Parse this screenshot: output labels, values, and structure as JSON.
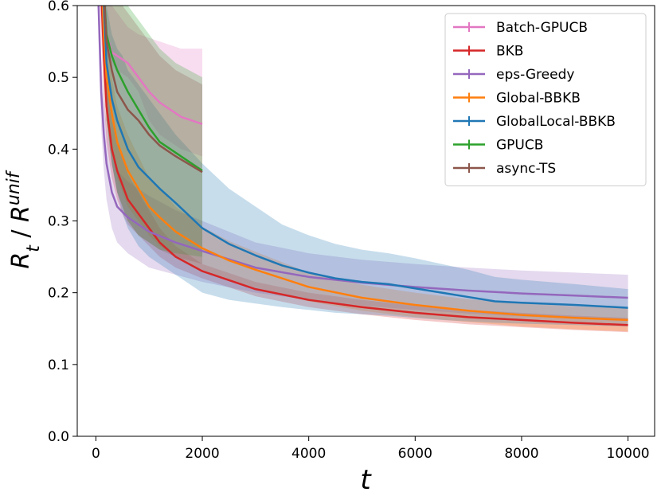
{
  "chart_data": {
    "type": "line",
    "title": "",
    "xlabel": "t",
    "ylabel_main": "R",
    "ylabel_main_sub": "t",
    "ylabel_sep": " / ",
    "ylabel_denom": "R",
    "ylabel_denom_sub": "t",
    "ylabel_denom_sup": "unif",
    "xlim": [
      -350,
      10500
    ],
    "ylim": [
      0.0,
      0.6
    ],
    "xticks": [
      0,
      2000,
      4000,
      6000,
      8000,
      10000
    ],
    "xtick_labels": [
      "0",
      "2000",
      "4000",
      "6000",
      "8000",
      "10000"
    ],
    "yticks": [
      0.0,
      0.1,
      0.2,
      0.3,
      0.4,
      0.5,
      0.6
    ],
    "ytick_labels": [
      "0.0",
      "0.1",
      "0.2",
      "0.3",
      "0.4",
      "0.5",
      "0.6"
    ],
    "grid": false,
    "legend_position": "top-right",
    "series": [
      {
        "name": "Batch-GPUCB",
        "color": "#e377c2",
        "x": [
          100,
          200,
          300,
          400,
          600,
          800,
          1000,
          1200,
          1400,
          1600,
          1800,
          2000
        ],
        "y": [
          0.66,
          0.56,
          0.535,
          0.53,
          0.52,
          0.5,
          0.48,
          0.465,
          0.455,
          0.445,
          0.44,
          0.435
        ],
        "lower": [
          0.6,
          0.54,
          0.52,
          0.51,
          0.5,
          0.48,
          0.44,
          0.42,
          0.41,
          0.4,
          0.395,
          0.39
        ],
        "upper": [
          0.7,
          0.62,
          0.6,
          0.59,
          0.57,
          0.56,
          0.555,
          0.55,
          0.545,
          0.54,
          0.54,
          0.54
        ]
      },
      {
        "name": "BKB",
        "color": "#d62728",
        "x": [
          50,
          100,
          150,
          200,
          300,
          400,
          500,
          600,
          800,
          1000,
          1200,
          1500,
          2000,
          3000,
          4000,
          5000,
          6000,
          7000,
          8000,
          9000,
          10000
        ],
        "y": [
          0.7,
          0.62,
          0.53,
          0.46,
          0.4,
          0.37,
          0.35,
          0.33,
          0.31,
          0.29,
          0.27,
          0.25,
          0.23,
          0.205,
          0.19,
          0.18,
          0.172,
          0.166,
          0.162,
          0.158,
          0.155
        ],
        "lower": [
          0.65,
          0.56,
          0.47,
          0.41,
          0.36,
          0.33,
          0.31,
          0.295,
          0.28,
          0.265,
          0.25,
          0.235,
          0.22,
          0.195,
          0.18,
          0.17,
          0.162,
          0.156,
          0.152,
          0.148,
          0.145
        ],
        "upper": [
          0.75,
          0.68,
          0.59,
          0.51,
          0.44,
          0.41,
          0.39,
          0.365,
          0.34,
          0.315,
          0.29,
          0.265,
          0.24,
          0.215,
          0.2,
          0.19,
          0.182,
          0.176,
          0.172,
          0.168,
          0.165
        ]
      },
      {
        "name": "eps-Greedy",
        "color": "#9467bd",
        "x": [
          50,
          100,
          150,
          200,
          300,
          400,
          600,
          800,
          1000,
          1500,
          2000,
          3000,
          4000,
          5000,
          6000,
          7000,
          8000,
          9000,
          10000
        ],
        "y": [
          0.6,
          0.48,
          0.42,
          0.38,
          0.34,
          0.32,
          0.305,
          0.295,
          0.285,
          0.27,
          0.258,
          0.235,
          0.222,
          0.214,
          0.208,
          0.203,
          0.199,
          0.196,
          0.193
        ],
        "lower": [
          0.55,
          0.43,
          0.37,
          0.33,
          0.29,
          0.27,
          0.255,
          0.245,
          0.235,
          0.225,
          0.215,
          0.2,
          0.19,
          0.182,
          0.176,
          0.171,
          0.167,
          0.164,
          0.161
        ],
        "upper": [
          0.65,
          0.53,
          0.47,
          0.43,
          0.39,
          0.37,
          0.355,
          0.345,
          0.335,
          0.315,
          0.3,
          0.27,
          0.255,
          0.246,
          0.24,
          0.235,
          0.231,
          0.228,
          0.225
        ]
      },
      {
        "name": "Global-BBKB",
        "color": "#ff7f0e",
        "x": [
          100,
          150,
          200,
          300,
          400,
          500,
          600,
          800,
          1000,
          1200,
          1500,
          2000,
          2500,
          3000,
          4000,
          5000,
          6000,
          7000,
          8000,
          9000,
          10000
        ],
        "y": [
          0.66,
          0.56,
          0.5,
          0.45,
          0.41,
          0.39,
          0.37,
          0.345,
          0.32,
          0.305,
          0.285,
          0.262,
          0.245,
          0.232,
          0.208,
          0.193,
          0.183,
          0.175,
          0.169,
          0.165,
          0.162
        ],
        "lower": [
          0.6,
          0.5,
          0.44,
          0.4,
          0.36,
          0.34,
          0.32,
          0.3,
          0.28,
          0.265,
          0.25,
          0.232,
          0.218,
          0.207,
          0.188,
          0.175,
          0.166,
          0.159,
          0.153,
          0.149,
          0.146
        ],
        "upper": [
          0.72,
          0.62,
          0.56,
          0.5,
          0.46,
          0.44,
          0.42,
          0.39,
          0.36,
          0.345,
          0.32,
          0.292,
          0.272,
          0.257,
          0.228,
          0.211,
          0.2,
          0.191,
          0.185,
          0.181,
          0.178
        ]
      },
      {
        "name": "GlobalLocal-BBKB",
        "color": "#1f77b4",
        "x": [
          150,
          200,
          300,
          400,
          500,
          600,
          800,
          1000,
          1200,
          1500,
          2000,
          2500,
          3000,
          3500,
          4000,
          4500,
          5000,
          5500,
          6000,
          6500,
          7000,
          7500,
          8000,
          9000,
          10000
        ],
        "y": [
          0.6,
          0.52,
          0.47,
          0.44,
          0.42,
          0.4,
          0.375,
          0.36,
          0.345,
          0.325,
          0.29,
          0.268,
          0.252,
          0.238,
          0.228,
          0.22,
          0.215,
          0.212,
          0.206,
          0.2,
          0.194,
          0.188,
          0.186,
          0.183,
          0.179
        ],
        "lower": [
          0.52,
          0.44,
          0.38,
          0.34,
          0.31,
          0.29,
          0.265,
          0.25,
          0.24,
          0.225,
          0.2,
          0.19,
          0.185,
          0.18,
          0.176,
          0.172,
          0.17,
          0.168,
          0.165,
          0.162,
          0.16,
          0.158,
          0.157,
          0.155,
          0.153
        ],
        "upper": [
          0.68,
          0.6,
          0.56,
          0.54,
          0.53,
          0.51,
          0.49,
          0.47,
          0.45,
          0.42,
          0.38,
          0.345,
          0.32,
          0.295,
          0.28,
          0.268,
          0.26,
          0.255,
          0.248,
          0.24,
          0.232,
          0.222,
          0.218,
          0.212,
          0.205
        ]
      },
      {
        "name": "GPUCB",
        "color": "#2ca02c",
        "x": [
          150,
          200,
          300,
          400,
          600,
          800,
          1000,
          1200,
          1500,
          2000
        ],
        "y": [
          0.62,
          0.56,
          0.53,
          0.51,
          0.48,
          0.455,
          0.43,
          0.41,
          0.395,
          0.37
        ],
        "lower": [
          0.52,
          0.44,
          0.38,
          0.34,
          0.3,
          0.28,
          0.27,
          0.26,
          0.255,
          0.25
        ],
        "upper": [
          0.7,
          0.66,
          0.63,
          0.62,
          0.6,
          0.58,
          0.56,
          0.54,
          0.52,
          0.5
        ]
      },
      {
        "name": "async-TS",
        "color": "#8c564b",
        "x": [
          150,
          200,
          300,
          400,
          600,
          800,
          1000,
          1200,
          1500,
          2000
        ],
        "y": [
          0.62,
          0.55,
          0.51,
          0.48,
          0.455,
          0.44,
          0.42,
          0.405,
          0.39,
          0.368
        ],
        "lower": [
          0.52,
          0.44,
          0.38,
          0.34,
          0.3,
          0.28,
          0.27,
          0.26,
          0.25,
          0.24
        ],
        "upper": [
          0.7,
          0.65,
          0.62,
          0.61,
          0.59,
          0.57,
          0.55,
          0.53,
          0.51,
          0.49
        ]
      }
    ]
  }
}
